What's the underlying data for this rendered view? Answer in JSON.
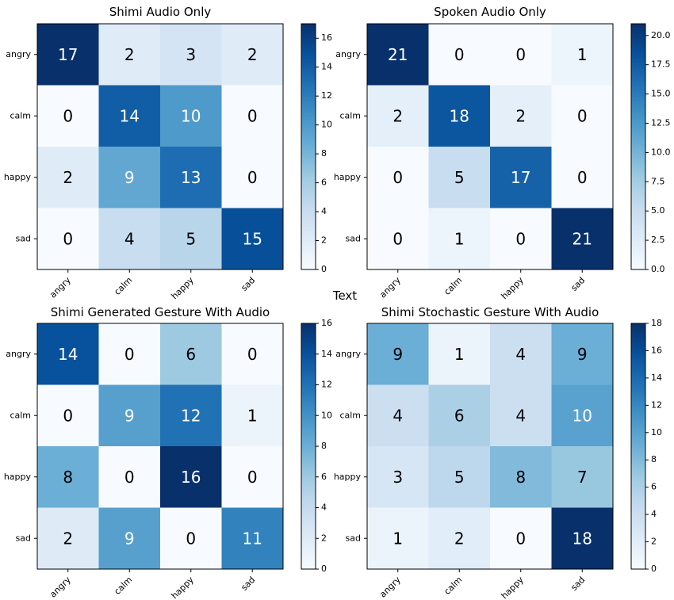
{
  "center_label": "Text",
  "chart_data": [
    {
      "type": "heatmap",
      "title": "Shimi Audio Only",
      "rows": [
        "angry",
        "calm",
        "happy",
        "sad"
      ],
      "cols": [
        "angry",
        "calm",
        "happy",
        "sad"
      ],
      "values": [
        [
          17,
          2,
          3,
          2
        ],
        [
          0,
          14,
          10,
          0
        ],
        [
          2,
          9,
          13,
          0
        ],
        [
          0,
          4,
          5,
          15
        ]
      ],
      "vmin": 0,
      "vmax": 17,
      "colorbar_ticks": [
        "0",
        "2",
        "4",
        "6",
        "8",
        "10",
        "12",
        "14",
        "16"
      ],
      "colorbar_tick_values": [
        0,
        2,
        4,
        6,
        8,
        10,
        12,
        14,
        16
      ]
    },
    {
      "type": "heatmap",
      "title": "Spoken Audio Only",
      "rows": [
        "angry",
        "calm",
        "happy",
        "sad"
      ],
      "cols": [
        "angry",
        "calm",
        "happy",
        "sad"
      ],
      "values": [
        [
          21,
          0,
          0,
          1
        ],
        [
          2,
          18,
          2,
          0
        ],
        [
          0,
          5,
          17,
          0
        ],
        [
          0,
          1,
          0,
          21
        ]
      ],
      "vmin": 0,
      "vmax": 21,
      "colorbar_ticks": [
        "0.0",
        "2.5",
        "5.0",
        "7.5",
        "10.0",
        "12.5",
        "15.0",
        "17.5",
        "20.0"
      ],
      "colorbar_tick_values": [
        0,
        2.5,
        5,
        7.5,
        10,
        12.5,
        15,
        17.5,
        20
      ]
    },
    {
      "type": "heatmap",
      "title": "Shimi Generated Gesture With Audio",
      "rows": [
        "angry",
        "calm",
        "happy",
        "sad"
      ],
      "cols": [
        "angry",
        "calm",
        "happy",
        "sad"
      ],
      "values": [
        [
          14,
          0,
          6,
          0
        ],
        [
          0,
          9,
          12,
          1
        ],
        [
          8,
          0,
          16,
          0
        ],
        [
          2,
          9,
          0,
          11
        ]
      ],
      "vmin": 0,
      "vmax": 16,
      "colorbar_ticks": [
        "0",
        "2",
        "4",
        "6",
        "8",
        "10",
        "12",
        "14",
        "16"
      ],
      "colorbar_tick_values": [
        0,
        2,
        4,
        6,
        8,
        10,
        12,
        14,
        16
      ]
    },
    {
      "type": "heatmap",
      "title": "Shimi Stochastic Gesture With Audio",
      "rows": [
        "angry",
        "calm",
        "happy",
        "sad"
      ],
      "cols": [
        "angry",
        "calm",
        "happy",
        "sad"
      ],
      "values": [
        [
          9,
          1,
          4,
          9
        ],
        [
          4,
          6,
          4,
          10
        ],
        [
          3,
          5,
          8,
          7
        ],
        [
          1,
          2,
          0,
          18
        ]
      ],
      "vmin": 0,
      "vmax": 18,
      "colorbar_ticks": [
        "0",
        "2",
        "4",
        "6",
        "8",
        "10",
        "12",
        "14",
        "16",
        "18"
      ],
      "colorbar_tick_values": [
        0,
        2,
        4,
        6,
        8,
        10,
        12,
        14,
        16,
        18
      ]
    }
  ]
}
